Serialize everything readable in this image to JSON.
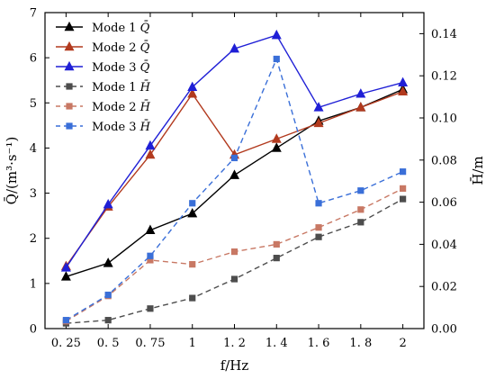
{
  "chart_data": {
    "type": "line",
    "title": "",
    "xlabel": "f/Hz",
    "ylabel_left": "Q̄/(m³·s⁻¹)",
    "ylabel_right": "H̄/m",
    "categories": [
      "0. 25",
      "0. 5",
      "0. 75",
      "1",
      "1. 2",
      "1. 4",
      "1. 6",
      "1. 8",
      "2"
    ],
    "ylim_left": [
      0,
      7
    ],
    "ylim_right": [
      0,
      0.15
    ],
    "yticks_left": [
      "0",
      "1",
      "2",
      "3",
      "4",
      "5",
      "6",
      "7"
    ],
    "yticks_right": [
      "0.00",
      "0.02",
      "0.04",
      "0.06",
      "0.08",
      "0.10",
      "0.12",
      "0.14"
    ],
    "grid": false,
    "legend_position": "top-left",
    "series": [
      {
        "name": "Mode 1",
        "symbol": "Q̄",
        "axis": "left",
        "style": "solid",
        "marker": "triangle",
        "color": "#000000",
        "values": [
          1.15,
          1.45,
          2.18,
          2.55,
          3.4,
          4.0,
          4.6,
          4.9,
          5.3
        ]
      },
      {
        "name": "Mode 2",
        "symbol": "Q̄",
        "axis": "left",
        "style": "solid",
        "marker": "triangle",
        "color": "#b23a1e",
        "values": [
          1.38,
          2.7,
          3.85,
          5.2,
          3.85,
          4.2,
          4.55,
          4.9,
          5.25
        ]
      },
      {
        "name": "Mode 3",
        "symbol": "Q̄",
        "axis": "left",
        "style": "solid",
        "marker": "triangle",
        "color": "#1f1fd6",
        "values": [
          1.35,
          2.75,
          4.05,
          5.35,
          6.2,
          6.5,
          4.9,
          5.2,
          5.45
        ]
      },
      {
        "name": "Mode 1",
        "symbol": "H̄",
        "axis": "right",
        "style": "dashed",
        "marker": "square",
        "color": "#4d4d4d",
        "values": [
          0.0025,
          0.004,
          0.0095,
          0.0145,
          0.0235,
          0.0335,
          0.0435,
          0.0505,
          0.0615
        ]
      },
      {
        "name": "Mode 2",
        "symbol": "H̄",
        "axis": "right",
        "style": "dashed",
        "marker": "square",
        "color": "#c87864",
        "values": [
          0.0035,
          0.0155,
          0.0325,
          0.0305,
          0.0365,
          0.04,
          0.048,
          0.0565,
          0.0665
        ]
      },
      {
        "name": "Mode 3",
        "symbol": "H̄",
        "axis": "right",
        "style": "dashed",
        "marker": "square",
        "color": "#3a6fd8",
        "values": [
          0.004,
          0.016,
          0.0345,
          0.0595,
          0.081,
          0.128,
          0.0595,
          0.0655,
          0.0745
        ]
      }
    ]
  }
}
